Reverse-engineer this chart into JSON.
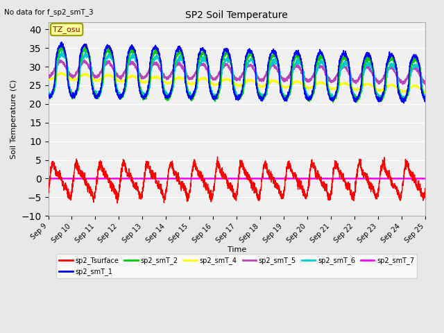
{
  "title": "SP2 Soil Temperature",
  "subtitle": "No data for f_sp2_smT_3",
  "ylabel": "Soil Temperature (C)",
  "xlabel": "Time",
  "ylim": [
    -10,
    42
  ],
  "yticks": [
    -10,
    -5,
    0,
    5,
    10,
    15,
    20,
    25,
    30,
    35,
    40
  ],
  "tz_label": "TZ_osu",
  "legend": [
    {
      "label": "sp2_Tsurface",
      "color": "#ff0000"
    },
    {
      "label": "sp2_smT_1",
      "color": "#0000ff"
    },
    {
      "label": "sp2_smT_2",
      "color": "#00cc00"
    },
    {
      "label": "sp2_smT_4",
      "color": "#ffff00"
    },
    {
      "label": "sp2_smT_5",
      "color": "#bb44bb"
    },
    {
      "label": "sp2_smT_6",
      "color": "#00cccc"
    },
    {
      "label": "sp2_smT_7",
      "color": "#ff00ff"
    }
  ],
  "xstart": 9,
  "xend": 25,
  "num_points": 3200,
  "background_color": "#e8e8e8",
  "plot_bg": "#f0f0f0"
}
